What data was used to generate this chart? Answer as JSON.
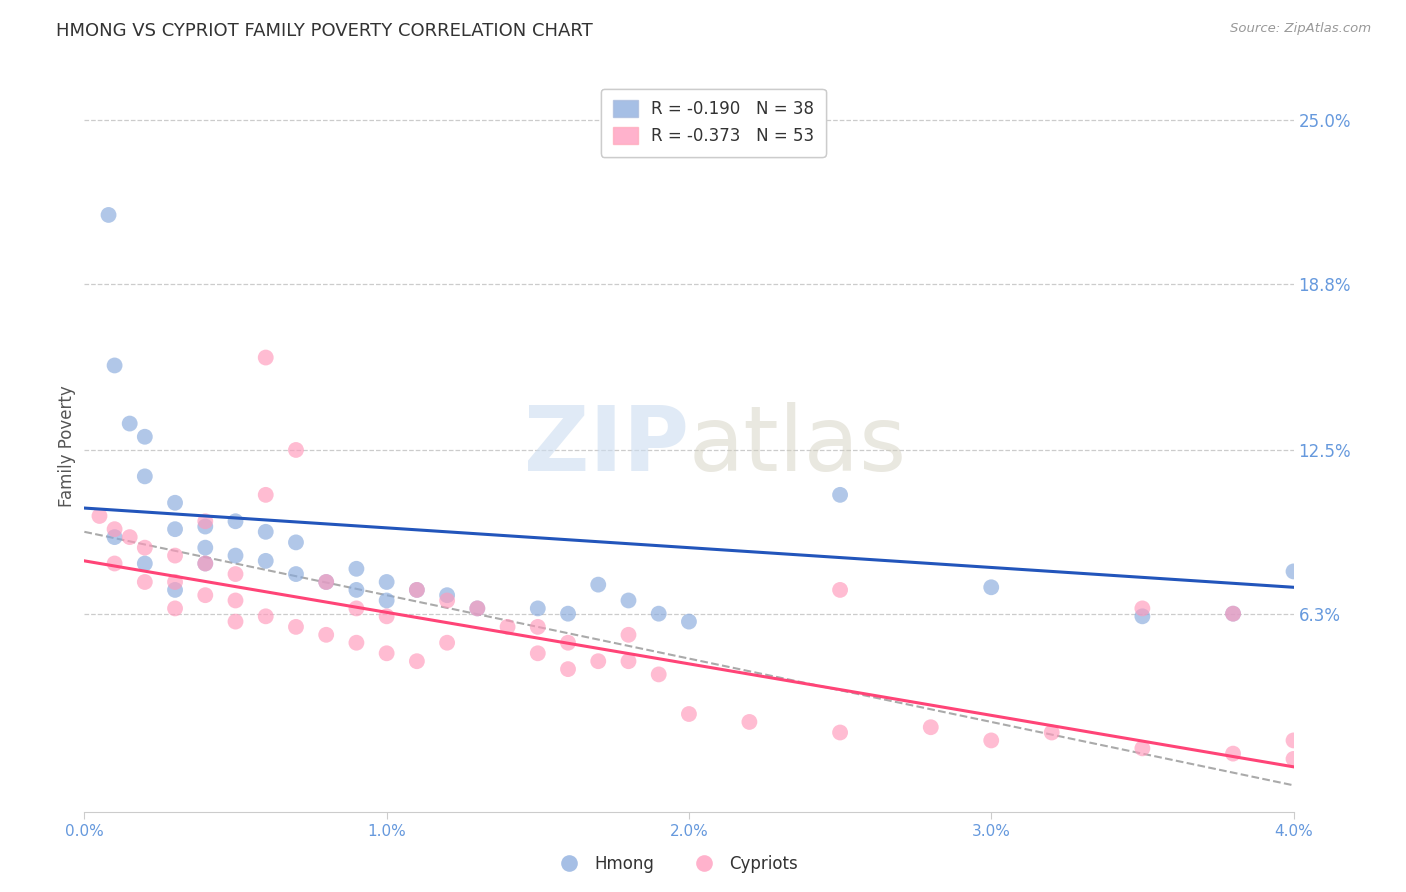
{
  "title": "HMONG VS CYPRIOT FAMILY POVERTY CORRELATION CHART",
  "source": "Source: ZipAtlas.com",
  "ylabel": "Family Poverty",
  "legend_label1": "Hmong",
  "legend_label2": "Cypriots",
  "R1": "-0.190",
  "N1": "38",
  "R2": "-0.373",
  "N2": "53",
  "xmin": 0.0,
  "xmax": 0.04,
  "ymin": -0.012,
  "ymax": 0.265,
  "ytick_vals": [
    0.063,
    0.125,
    0.188,
    0.25
  ],
  "ytick_labels": [
    "6.3%",
    "12.5%",
    "18.8%",
    "25.0%"
  ],
  "xtick_vals": [
    0.0,
    0.01,
    0.02,
    0.03,
    0.04
  ],
  "xtick_labels": [
    "0.0%",
    "1.0%",
    "2.0%",
    "3.0%",
    "4.0%"
  ],
  "color_blue": "#88AADD",
  "color_pink": "#FF99BB",
  "color_trendline_blue": "#2255BB",
  "color_trendline_pink": "#FF4477",
  "color_right_labels": "#6699DD",
  "background": "#FFFFFF",
  "blue_intercept": 0.103,
  "blue_slope": -0.75,
  "pink_intercept": 0.083,
  "pink_slope": -1.95,
  "dash_intercept": 0.094,
  "dash_slope": -2.4,
  "hmong_x": [
    0.0008,
    0.001,
    0.0015,
    0.002,
    0.002,
    0.003,
    0.003,
    0.004,
    0.004,
    0.004,
    0.005,
    0.005,
    0.006,
    0.006,
    0.007,
    0.007,
    0.008,
    0.009,
    0.009,
    0.01,
    0.01,
    0.011,
    0.012,
    0.013,
    0.015,
    0.016,
    0.017,
    0.018,
    0.019,
    0.02,
    0.001,
    0.002,
    0.003,
    0.025,
    0.03,
    0.035,
    0.038,
    0.04
  ],
  "hmong_y": [
    0.214,
    0.157,
    0.135,
    0.13,
    0.115,
    0.105,
    0.095,
    0.096,
    0.088,
    0.082,
    0.098,
    0.085,
    0.094,
    0.083,
    0.09,
    0.078,
    0.075,
    0.08,
    0.072,
    0.075,
    0.068,
    0.072,
    0.07,
    0.065,
    0.065,
    0.063,
    0.074,
    0.068,
    0.063,
    0.06,
    0.092,
    0.082,
    0.072,
    0.108,
    0.073,
    0.062,
    0.063,
    0.079
  ],
  "cypriot_x": [
    0.0005,
    0.001,
    0.001,
    0.0015,
    0.002,
    0.002,
    0.003,
    0.003,
    0.003,
    0.004,
    0.004,
    0.005,
    0.005,
    0.005,
    0.006,
    0.006,
    0.007,
    0.007,
    0.008,
    0.008,
    0.009,
    0.009,
    0.01,
    0.01,
    0.011,
    0.011,
    0.012,
    0.012,
    0.013,
    0.014,
    0.015,
    0.015,
    0.016,
    0.016,
    0.017,
    0.018,
    0.018,
    0.019,
    0.02,
    0.022,
    0.025,
    0.025,
    0.028,
    0.03,
    0.032,
    0.035,
    0.035,
    0.038,
    0.038,
    0.04,
    0.04,
    0.004,
    0.006
  ],
  "cypriot_y": [
    0.1,
    0.095,
    0.082,
    0.092,
    0.088,
    0.075,
    0.085,
    0.075,
    0.065,
    0.082,
    0.07,
    0.078,
    0.068,
    0.06,
    0.16,
    0.062,
    0.125,
    0.058,
    0.075,
    0.055,
    0.065,
    0.052,
    0.062,
    0.048,
    0.072,
    0.045,
    0.068,
    0.052,
    0.065,
    0.058,
    0.058,
    0.048,
    0.052,
    0.042,
    0.045,
    0.055,
    0.045,
    0.04,
    0.025,
    0.022,
    0.018,
    0.072,
    0.02,
    0.015,
    0.018,
    0.012,
    0.065,
    0.01,
    0.063,
    0.008,
    0.015,
    0.098,
    0.108
  ]
}
